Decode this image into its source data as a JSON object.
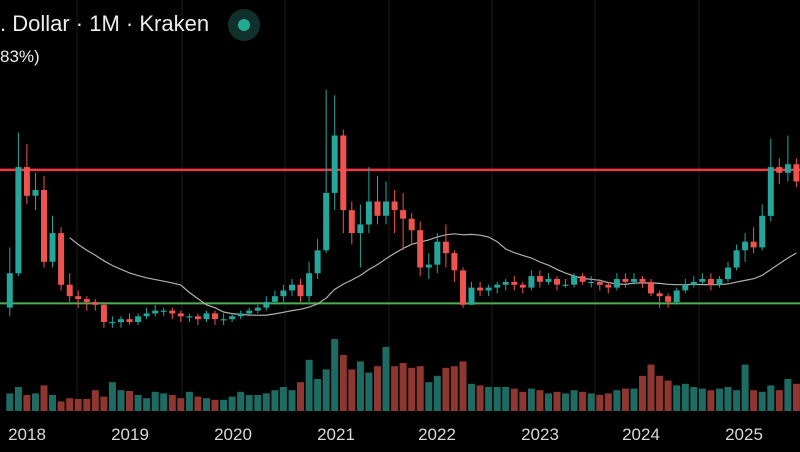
{
  "header": {
    "title": ". Dollar · 1M · Kraken",
    "change": "83%)"
  },
  "colors": {
    "background": "#000000",
    "grid": "#1c1c1c",
    "up": "#26a69a",
    "down": "#ef5350",
    "volume_up": "#1e6b63",
    "volume_down": "#8e3630",
    "resistance_line": "#f23645",
    "support_line": "#4caf50",
    "moving_average": "#b0b0b0",
    "status_dot": "#22ab94"
  },
  "chart_data": {
    "type": "candlestick",
    "x_tick_labels": [
      "2018",
      "2019",
      "2020",
      "2021",
      "2022",
      "2023",
      "2024",
      "2025"
    ],
    "horizontal_lines": [
      {
        "kind": "resistance",
        "level": 0.84
      },
      {
        "kind": "support",
        "level": 0.375
      }
    ],
    "candles": [
      [
        0.36,
        0.48,
        0.57,
        0.33
      ],
      [
        0.48,
        0.85,
        0.97,
        0.47
      ],
      [
        0.85,
        0.75,
        0.93,
        0.72
      ],
      [
        0.75,
        0.77,
        0.83,
        0.7
      ],
      [
        0.77,
        0.52,
        0.82,
        0.5
      ],
      [
        0.52,
        0.62,
        0.68,
        0.5
      ],
      [
        0.62,
        0.44,
        0.64,
        0.42
      ],
      [
        0.44,
        0.4,
        0.48,
        0.38
      ],
      [
        0.4,
        0.39,
        0.42,
        0.36
      ],
      [
        0.39,
        0.38,
        0.4,
        0.35
      ],
      [
        0.38,
        0.37,
        0.39,
        0.35
      ],
      [
        0.37,
        0.31,
        0.38,
        0.29
      ],
      [
        0.31,
        0.31,
        0.33,
        0.29
      ],
      [
        0.31,
        0.32,
        0.33,
        0.29
      ],
      [
        0.32,
        0.31,
        0.34,
        0.3
      ],
      [
        0.31,
        0.33,
        0.34,
        0.3
      ],
      [
        0.33,
        0.34,
        0.36,
        0.32
      ],
      [
        0.34,
        0.35,
        0.37,
        0.33
      ],
      [
        0.35,
        0.35,
        0.36,
        0.33
      ],
      [
        0.35,
        0.34,
        0.36,
        0.32
      ],
      [
        0.34,
        0.33,
        0.35,
        0.31
      ],
      [
        0.33,
        0.33,
        0.34,
        0.31
      ],
      [
        0.33,
        0.32,
        0.34,
        0.3
      ],
      [
        0.32,
        0.34,
        0.35,
        0.31
      ],
      [
        0.34,
        0.32,
        0.35,
        0.3
      ],
      [
        0.32,
        0.32,
        0.34,
        0.3
      ],
      [
        0.32,
        0.33,
        0.34,
        0.31
      ],
      [
        0.33,
        0.34,
        0.35,
        0.32
      ],
      [
        0.34,
        0.35,
        0.36,
        0.33
      ],
      [
        0.35,
        0.36,
        0.37,
        0.34
      ],
      [
        0.36,
        0.38,
        0.4,
        0.35
      ],
      [
        0.38,
        0.4,
        0.42,
        0.37
      ],
      [
        0.4,
        0.42,
        0.44,
        0.38
      ],
      [
        0.42,
        0.44,
        0.46,
        0.4
      ],
      [
        0.44,
        0.4,
        0.46,
        0.38
      ],
      [
        0.4,
        0.48,
        0.52,
        0.38
      ],
      [
        0.48,
        0.56,
        0.6,
        0.46
      ],
      [
        0.56,
        0.76,
        1.12,
        0.55
      ],
      [
        0.76,
        0.96,
        1.1,
        0.7
      ],
      [
        0.96,
        0.7,
        0.98,
        0.62
      ],
      [
        0.7,
        0.62,
        0.73,
        0.58
      ],
      [
        0.62,
        0.65,
        0.72,
        0.5
      ],
      [
        0.65,
        0.73,
        0.85,
        0.62
      ],
      [
        0.73,
        0.68,
        0.82,
        0.65
      ],
      [
        0.68,
        0.73,
        0.8,
        0.65
      ],
      [
        0.73,
        0.7,
        0.77,
        0.62
      ],
      [
        0.7,
        0.67,
        0.76,
        0.56
      ],
      [
        0.67,
        0.63,
        0.69,
        0.58
      ],
      [
        0.63,
        0.5,
        0.66,
        0.47
      ],
      [
        0.5,
        0.51,
        0.55,
        0.46
      ],
      [
        0.51,
        0.59,
        0.62,
        0.48
      ],
      [
        0.59,
        0.55,
        0.65,
        0.5
      ],
      [
        0.55,
        0.49,
        0.56,
        0.45
      ],
      [
        0.49,
        0.37,
        0.5,
        0.36
      ],
      [
        0.37,
        0.43,
        0.45,
        0.37
      ],
      [
        0.43,
        0.42,
        0.45,
        0.4
      ],
      [
        0.42,
        0.43,
        0.44,
        0.4
      ],
      [
        0.43,
        0.44,
        0.45,
        0.41
      ],
      [
        0.44,
        0.45,
        0.46,
        0.42
      ],
      [
        0.45,
        0.44,
        0.47,
        0.42
      ],
      [
        0.44,
        0.43,
        0.45,
        0.41
      ],
      [
        0.43,
        0.47,
        0.49,
        0.42
      ],
      [
        0.47,
        0.45,
        0.49,
        0.43
      ],
      [
        0.45,
        0.46,
        0.48,
        0.44
      ],
      [
        0.46,
        0.44,
        0.47,
        0.42
      ],
      [
        0.44,
        0.44,
        0.46,
        0.43
      ],
      [
        0.44,
        0.47,
        0.48,
        0.43
      ],
      [
        0.47,
        0.45,
        0.48,
        0.44
      ],
      [
        0.45,
        0.45,
        0.47,
        0.43
      ],
      [
        0.45,
        0.44,
        0.46,
        0.42
      ],
      [
        0.44,
        0.43,
        0.45,
        0.41
      ],
      [
        0.43,
        0.46,
        0.48,
        0.42
      ],
      [
        0.46,
        0.45,
        0.48,
        0.43
      ],
      [
        0.45,
        0.46,
        0.48,
        0.44
      ],
      [
        0.46,
        0.45,
        0.47,
        0.43
      ],
      [
        0.45,
        0.41,
        0.46,
        0.4
      ],
      [
        0.41,
        0.4,
        0.42,
        0.36
      ],
      [
        0.4,
        0.38,
        0.41,
        0.36
      ],
      [
        0.38,
        0.42,
        0.43,
        0.37
      ],
      [
        0.42,
        0.44,
        0.46,
        0.41
      ],
      [
        0.44,
        0.45,
        0.47,
        0.43
      ],
      [
        0.45,
        0.46,
        0.48,
        0.44
      ],
      [
        0.46,
        0.44,
        0.48,
        0.42
      ],
      [
        0.44,
        0.46,
        0.47,
        0.43
      ],
      [
        0.46,
        0.5,
        0.52,
        0.45
      ],
      [
        0.5,
        0.56,
        0.58,
        0.49
      ],
      [
        0.56,
        0.59,
        0.62,
        0.52
      ],
      [
        0.59,
        0.57,
        0.64,
        0.55
      ],
      [
        0.57,
        0.68,
        0.72,
        0.56
      ],
      [
        0.68,
        0.85,
        0.95,
        0.66
      ],
      [
        0.85,
        0.83,
        0.88,
        0.79
      ],
      [
        0.83,
        0.86,
        0.96,
        0.8
      ],
      [
        0.86,
        0.8,
        0.88,
        0.78
      ]
    ],
    "volume": [
      0.22,
      0.3,
      0.2,
      0.22,
      0.32,
      0.2,
      0.12,
      0.16,
      0.15,
      0.15,
      0.26,
      0.18,
      0.36,
      0.26,
      0.25,
      0.2,
      0.16,
      0.24,
      0.22,
      0.2,
      0.16,
      0.24,
      0.18,
      0.16,
      0.14,
      0.14,
      0.18,
      0.24,
      0.2,
      0.2,
      0.22,
      0.26,
      0.3,
      0.26,
      0.36,
      0.64,
      0.4,
      0.52,
      0.9,
      0.7,
      0.52,
      0.62,
      0.48,
      0.56,
      0.8,
      0.56,
      0.6,
      0.54,
      0.56,
      0.36,
      0.44,
      0.54,
      0.56,
      0.62,
      0.34,
      0.32,
      0.3,
      0.3,
      0.3,
      0.28,
      0.24,
      0.28,
      0.26,
      0.22,
      0.24,
      0.22,
      0.26,
      0.24,
      0.22,
      0.2,
      0.22,
      0.26,
      0.28,
      0.28,
      0.44,
      0.58,
      0.44,
      0.38,
      0.32,
      0.34,
      0.3,
      0.28,
      0.26,
      0.28,
      0.3,
      0.26,
      0.58,
      0.26,
      0.24,
      0.32,
      0.26,
      0.4,
      0.34
    ]
  }
}
